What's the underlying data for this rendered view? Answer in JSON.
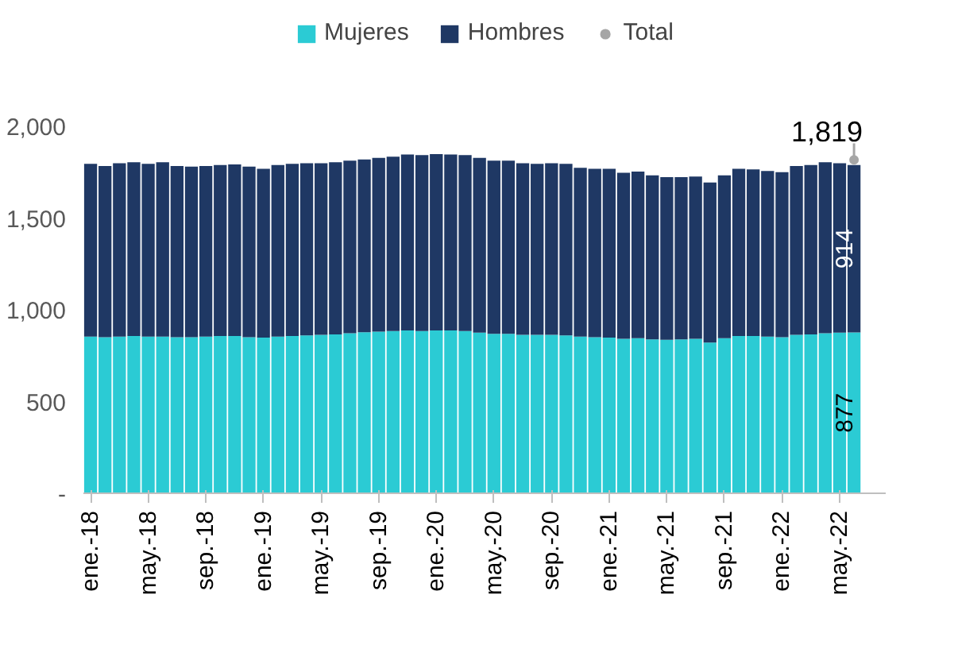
{
  "chart_data": {
    "type": "bar",
    "stacked": true,
    "legend": "top",
    "grid": false,
    "categories": [
      "ene.-18",
      null,
      null,
      null,
      "may.-18",
      null,
      null,
      null,
      "sep.-18",
      null,
      null,
      null,
      "ene.-19",
      null,
      null,
      null,
      "may.-19",
      null,
      null,
      null,
      "sep.-19",
      null,
      null,
      null,
      "ene.-20",
      null,
      null,
      null,
      "may.-20",
      null,
      null,
      null,
      "sep.-20",
      null,
      null,
      null,
      "ene.-21",
      null,
      null,
      null,
      "may.-21",
      null,
      null,
      null,
      "sep.-21",
      null,
      null,
      null,
      "ene.-22",
      null,
      null,
      null,
      "may.-22",
      null
    ],
    "ylim": [
      0,
      2600
    ],
    "yticks": [
      {
        "value": 0,
        "label": "-"
      },
      {
        "value": 500,
        "label": "500"
      },
      {
        "value": 1000,
        "label": "1,000"
      },
      {
        "value": 1500,
        "label": "1,500"
      },
      {
        "value": 2000,
        "label": "2,000"
      }
    ],
    "series": [
      {
        "name": "Mujeres",
        "color": "#2bcbd4",
        "values": [
          855,
          852,
          855,
          858,
          855,
          855,
          852,
          852,
          855,
          858,
          858,
          852,
          849,
          855,
          858,
          861,
          864,
          867,
          873,
          879,
          882,
          885,
          888,
          885,
          888,
          888,
          885,
          876,
          870,
          870,
          864,
          864,
          864,
          861,
          855,
          852,
          849,
          843,
          846,
          840,
          837,
          840,
          843,
          822,
          846,
          858,
          858,
          855,
          852,
          864,
          867,
          873,
          876,
          877
        ],
        "value_labels": [
          null,
          null,
          null,
          null,
          null,
          null,
          null,
          null,
          null,
          null,
          null,
          null,
          null,
          null,
          null,
          null,
          null,
          null,
          null,
          null,
          null,
          null,
          null,
          null,
          null,
          null,
          null,
          null,
          null,
          null,
          null,
          null,
          null,
          null,
          null,
          null,
          null,
          null,
          null,
          null,
          null,
          null,
          null,
          null,
          null,
          null,
          null,
          null,
          null,
          null,
          null,
          null,
          null,
          "877"
        ]
      },
      {
        "name": "Hombres",
        "color": "#1f3864",
        "values": [
          942,
          933,
          945,
          948,
          942,
          951,
          933,
          930,
          930,
          933,
          936,
          930,
          921,
          936,
          939,
          939,
          936,
          939,
          942,
          942,
          948,
          951,
          960,
          960,
          962,
          960,
          960,
          954,
          945,
          945,
          936,
          933,
          936,
          936,
          921,
          918,
          921,
          906,
          909,
          894,
          888,
          885,
          885,
          873,
          888,
          912,
          909,
          903,
          900,
          921,
          924,
          933,
          924,
          914
        ],
        "value_labels": [
          null,
          null,
          null,
          null,
          null,
          null,
          null,
          null,
          null,
          null,
          null,
          null,
          null,
          null,
          null,
          null,
          null,
          null,
          null,
          null,
          null,
          null,
          null,
          null,
          null,
          null,
          null,
          null,
          null,
          null,
          null,
          null,
          null,
          null,
          null,
          null,
          null,
          null,
          null,
          null,
          null,
          null,
          null,
          null,
          null,
          null,
          null,
          null,
          null,
          null,
          null,
          null,
          null,
          "914"
        ]
      },
      {
        "name": "Total",
        "type": "scatter",
        "marker": "circle",
        "color": "#a6a6a6",
        "values": [
          null,
          null,
          null,
          null,
          null,
          null,
          null,
          null,
          null,
          null,
          null,
          null,
          null,
          null,
          null,
          null,
          null,
          null,
          null,
          null,
          null,
          null,
          null,
          null,
          null,
          null,
          null,
          null,
          null,
          null,
          null,
          null,
          null,
          null,
          null,
          null,
          null,
          null,
          null,
          null,
          null,
          null,
          null,
          null,
          null,
          null,
          null,
          null,
          null,
          null,
          null,
          null,
          null,
          1819
        ],
        "value_labels": [
          null,
          null,
          null,
          null,
          null,
          null,
          null,
          null,
          null,
          null,
          null,
          null,
          null,
          null,
          null,
          null,
          null,
          null,
          null,
          null,
          null,
          null,
          null,
          null,
          null,
          null,
          null,
          null,
          null,
          null,
          null,
          null,
          null,
          null,
          null,
          null,
          null,
          null,
          null,
          null,
          null,
          null,
          null,
          null,
          null,
          null,
          null,
          null,
          null,
          null,
          null,
          null,
          null,
          "1,819"
        ]
      }
    ]
  }
}
